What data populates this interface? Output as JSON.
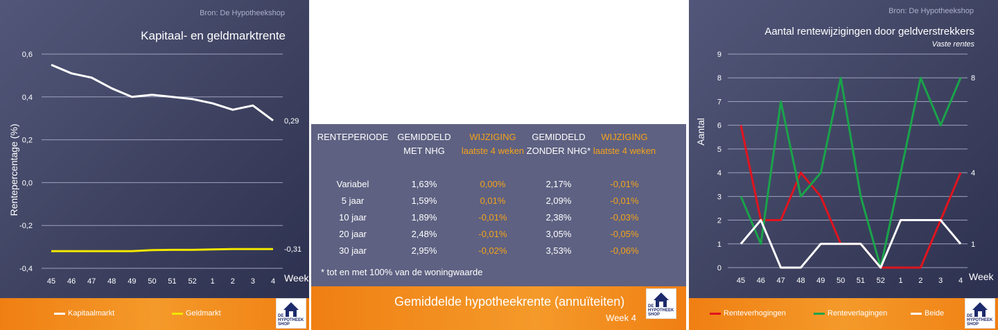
{
  "left_chart": {
    "source": "Bron: De Hypotheekshop",
    "title": "Kapitaal- en geldmarktrente",
    "ylabel": "Rentepercentage (%)",
    "xlabel": "Week",
    "yticks": [
      "0,6",
      "0,4",
      "0,2",
      "0,0",
      "-0,2",
      "-0,4"
    ],
    "xticks": [
      "45",
      "46",
      "47",
      "48",
      "49",
      "50",
      "51",
      "52",
      "1",
      "2",
      "3",
      "4"
    ],
    "end_label_kapitaal": "0,29",
    "end_label_geld": "-0,31",
    "legend": [
      "Kapitaalmarkt",
      "Geldmarkt"
    ],
    "colors": {
      "kapitaal": "#ffffff",
      "geld": "#f2e600"
    }
  },
  "right_chart": {
    "source": "Bron: De Hypotheekshop",
    "title": "Aantal rentewijzigingen door geldverstrekkers",
    "subtitle": "Vaste rentes",
    "ylabel": "Aantal",
    "xlabel": "Week",
    "yticks": [
      "9",
      "8",
      "7",
      "6",
      "5",
      "4",
      "3",
      "2",
      "1",
      "0"
    ],
    "xticks": [
      "45",
      "46",
      "47",
      "48",
      "49",
      "50",
      "51",
      "52",
      "1",
      "2",
      "3",
      "4"
    ],
    "right_labels": [
      "8",
      "4",
      "1"
    ],
    "legend": [
      "Renteverhogingen",
      "Renteverlagingen",
      "Beide"
    ],
    "colors": {
      "verhoging": "#e0141e",
      "verlaging": "#1aa34a",
      "beide": "#ffffff"
    }
  },
  "table": {
    "headers": [
      [
        "RENTEPERIODE",
        ""
      ],
      [
        "GEMIDDELD",
        "MET NHG"
      ],
      [
        "WIJZIGING",
        "laatste 4 weken"
      ],
      [
        "GEMIDDELD",
        "ZONDER NHG*"
      ],
      [
        "WIJZIGING",
        "laatste 4 weken"
      ]
    ],
    "rows": [
      [
        "Variabel",
        "1,63%",
        "0,00%",
        "2,17%",
        "-0,01%"
      ],
      [
        "5 jaar",
        "1,59%",
        "0,01%",
        "2,09%",
        "-0,01%"
      ],
      [
        "10 jaar",
        "1,89%",
        "-0,01%",
        "2,38%",
        "-0,03%"
      ],
      [
        "20 jaar",
        "2,48%",
        "-0,01%",
        "3,05%",
        "-0,05%"
      ],
      [
        "30 jaar",
        "2,95%",
        "-0,02%",
        "3,53%",
        "-0,06%"
      ]
    ],
    "footnote": "* tot en met 100% van de woningwaarde",
    "title": "Gemiddelde hypotheekrente (annuïteiten)",
    "week": "Week 4"
  },
  "logo": {
    "line1": "DE",
    "line2": "HYPOTHEEK",
    "line3": "SHOP"
  },
  "chart_data": [
    {
      "type": "line",
      "title": "Kapitaal- en geldmarktrente",
      "xlabel": "Week",
      "ylabel": "Rentepercentage (%)",
      "x": [
        "45",
        "46",
        "47",
        "48",
        "49",
        "50",
        "51",
        "52",
        "1",
        "2",
        "3",
        "4"
      ],
      "ylim": [
        -0.4,
        0.6
      ],
      "grid": true,
      "legend": "bottom",
      "series": [
        {
          "name": "Kapitaalmarkt",
          "values": [
            0.55,
            0.51,
            0.49,
            0.44,
            0.4,
            0.41,
            0.4,
            0.39,
            0.37,
            0.34,
            0.36,
            0.29
          ]
        },
        {
          "name": "Geldmarkt",
          "values": [
            -0.32,
            -0.32,
            -0.32,
            -0.32,
            -0.32,
            -0.315,
            -0.314,
            -0.314,
            -0.312,
            -0.31,
            -0.31,
            -0.31
          ]
        }
      ]
    },
    {
      "type": "line",
      "title": "Aantal rentewijzigingen door geldverstrekkers",
      "subtitle": "Vaste rentes",
      "xlabel": "Week",
      "ylabel": "Aantal",
      "x": [
        "45",
        "46",
        "47",
        "48",
        "49",
        "50",
        "51",
        "52",
        "1",
        "2",
        "3",
        "4"
      ],
      "ylim": [
        0,
        9
      ],
      "grid": true,
      "legend": "bottom",
      "series": [
        {
          "name": "Renteverhogingen",
          "values": [
            6,
            2,
            2,
            4,
            3,
            1,
            1,
            0,
            0,
            0,
            2,
            4
          ]
        },
        {
          "name": "Renteverlagingen",
          "values": [
            3,
            1,
            7,
            3,
            4,
            8,
            3,
            0,
            4,
            8,
            6,
            8
          ]
        },
        {
          "name": "Beide",
          "values": [
            1,
            2,
            0,
            0,
            1,
            1,
            1,
            0,
            2,
            2,
            2,
            1
          ]
        }
      ]
    }
  ]
}
